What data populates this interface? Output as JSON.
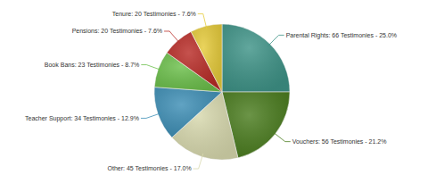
{
  "chart_data": {
    "type": "pie",
    "values": [
      66,
      56,
      45,
      34,
      23,
      20,
      20
    ],
    "value_labels": [
      "Parental Rights: 66 Testimonies - 25.0%",
      "Vouchers: 56 Testimonies - 21.2%",
      "Other: 45 Testimonies - 17.0%",
      "Teacher Support: 34 Testimonies - 12.9%",
      "Book Bans: 23 Testimonies - 8.7%",
      "Pensions: 20 Testimonies - 7.6%",
      "Tenure: 20 Testimonies - 7.6%"
    ],
    "colors": [
      "#3f9488",
      "#4b7d1f",
      "#d8d9ae",
      "#3e8fb6",
      "#6cc04b",
      "#b92c27",
      "#e6cb3a"
    ],
    "data_labels": true
  }
}
